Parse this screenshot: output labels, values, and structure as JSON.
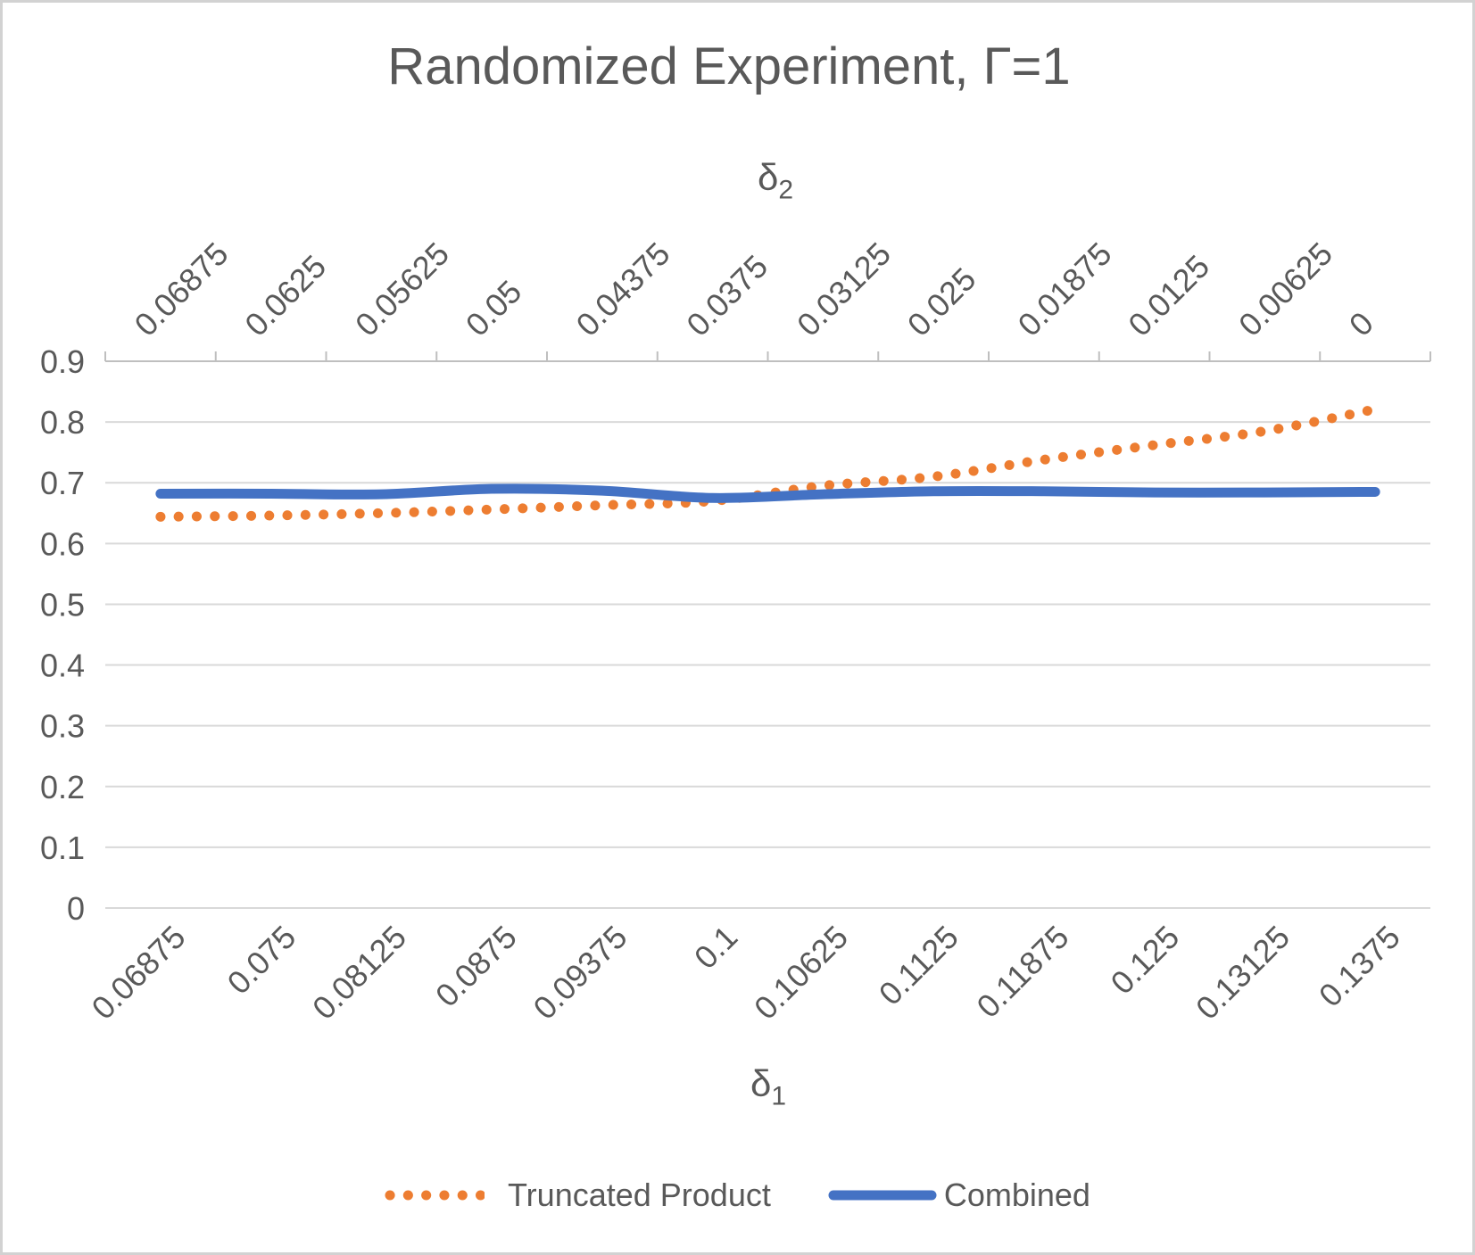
{
  "chart_data": {
    "type": "line",
    "title": "Randomized Experiment, Γ=1",
    "grid": true,
    "legend_position": "bottom",
    "colors": {
      "truncated_product": "#ED7D31",
      "combined": "#4472C4",
      "gridline": "#D9D9D9",
      "axis_line": "#BFBFBF",
      "text": "#595959",
      "frame_border": "#D2D2D2"
    },
    "y_axis": {
      "min": 0,
      "max": 0.9,
      "step": 0.1,
      "tick_labels": [
        "0",
        "0.1",
        "0.2",
        "0.3",
        "0.4",
        "0.5",
        "0.6",
        "0.7",
        "0.8",
        "0.9"
      ]
    },
    "x1_axis": {
      "title_base": "δ",
      "title_sub": "1",
      "tick_labels": [
        "0.06875",
        "0.075",
        "0.08125",
        "0.0875",
        "0.09375",
        "0.1",
        "0.10625",
        "0.1125",
        "0.11875",
        "0.125",
        "0.13125",
        "0.1375"
      ]
    },
    "x2_axis": {
      "title_base": "δ",
      "title_sub": "2",
      "tick_labels": [
        "0.06875",
        "0.0625",
        "0.05625",
        "0.05",
        "0.04375",
        "0.0375",
        "0.03125",
        "0.025",
        "0.01875",
        "0.0125",
        "0.00625",
        "0"
      ]
    },
    "series": [
      {
        "name": "Truncated Product",
        "style": "dotted",
        "color": "#ED7D31",
        "values": [
          0.644,
          0.646,
          0.65,
          0.656,
          0.663,
          0.67,
          0.695,
          0.71,
          0.738,
          0.762,
          0.785,
          0.821
        ]
      },
      {
        "name": "Combined",
        "style": "solid",
        "color": "#4472C4",
        "values": [
          0.682,
          0.682,
          0.681,
          0.69,
          0.687,
          0.675,
          0.681,
          0.686,
          0.686,
          0.684,
          0.684,
          0.685
        ]
      }
    ]
  }
}
